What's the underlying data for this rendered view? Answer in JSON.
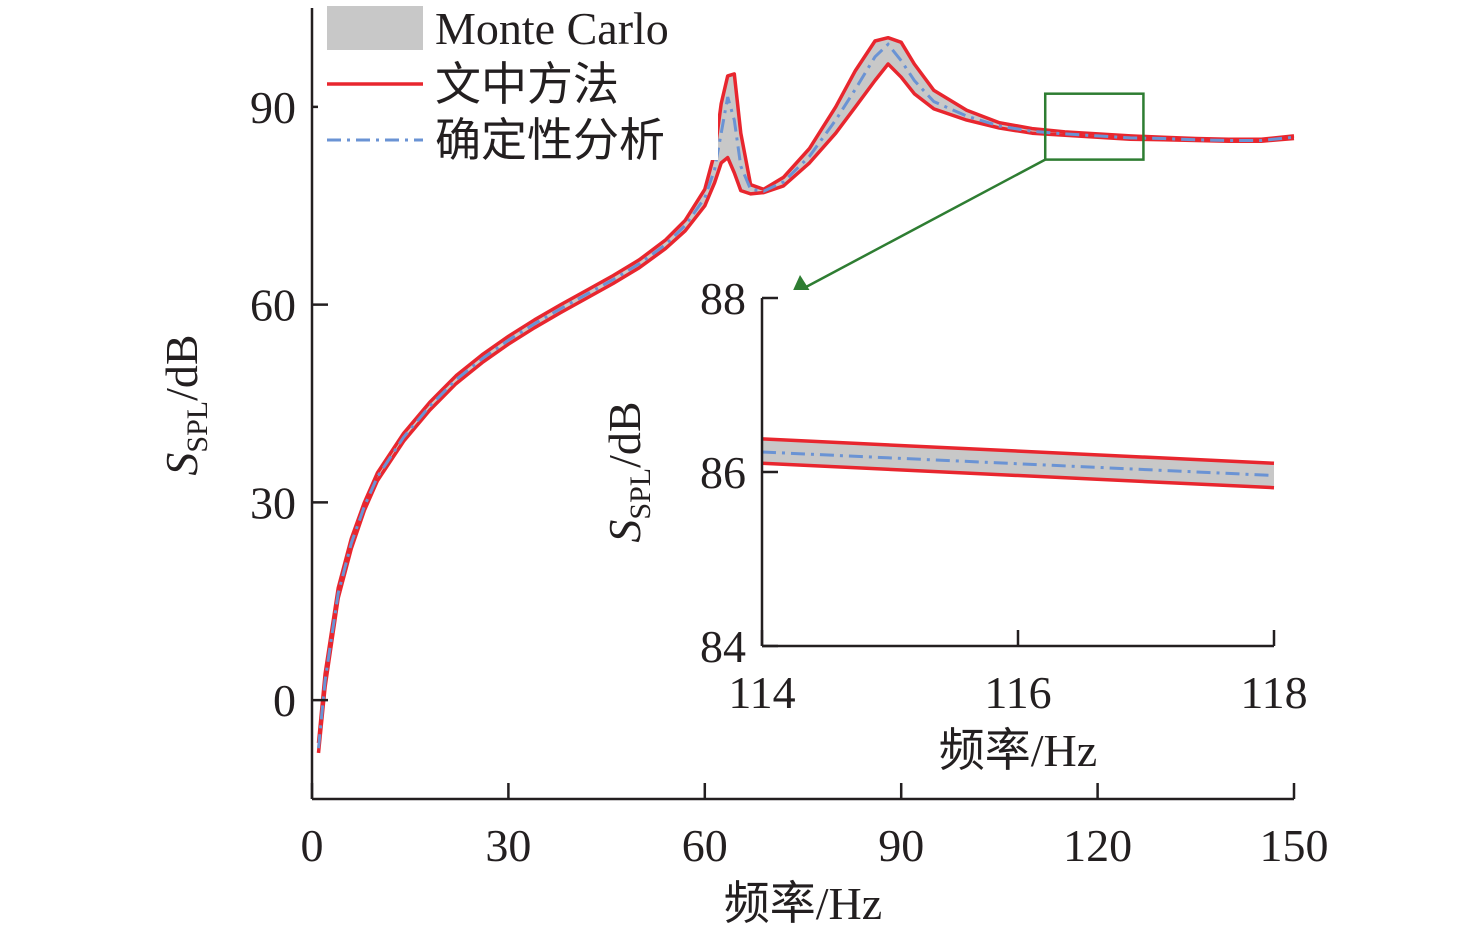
{
  "colors": {
    "band_fill": "#c8c8c8",
    "bound_line": "#e8262e",
    "deterministic_line": "#6a93d4",
    "axis": "#231f20",
    "zoom_box": "#2e7d32"
  },
  "legend": {
    "items": [
      {
        "key": "mc",
        "label": "Monte Carlo"
      },
      {
        "key": "bound",
        "label": "文中方法"
      },
      {
        "key": "det",
        "label": "确定性分析"
      }
    ]
  },
  "chart_data": [
    {
      "type": "area",
      "xlabel": "频率/Hz",
      "ylabel": "S_SPL/dB",
      "ylabel_main": "S",
      "ylabel_sub": "SPL",
      "ylabel_unit": "/dB",
      "xlim": [
        0,
        150
      ],
      "ylim": [
        -15,
        105
      ],
      "xticks": [
        0,
        30,
        60,
        90,
        120,
        150
      ],
      "yticks": [
        0,
        30,
        60,
        90
      ],
      "grid": false,
      "legend_position": "top-left",
      "zoom_box": {
        "x": [
          112,
          127
        ],
        "y": [
          82,
          92
        ]
      },
      "x": [
        1,
        2,
        4,
        6,
        8,
        10,
        14,
        18,
        22,
        26,
        30,
        34,
        38,
        42,
        46,
        50,
        54,
        57,
        60,
        61.5,
        62.5,
        63.5,
        64.5,
        65.5,
        67,
        69,
        72,
        76,
        80,
        83,
        86,
        88,
        90,
        92,
        95,
        100,
        105,
        110,
        115,
        120,
        125,
        130,
        135,
        140,
        145,
        150
      ],
      "series": [
        {
          "key": "upper",
          "values": [
            -6.5,
            4,
            17,
            24.5,
            30,
            34.5,
            40.5,
            45.2,
            49.2,
            52.4,
            55.2,
            57.7,
            60,
            62.2,
            64.4,
            66.8,
            69.8,
            72.8,
            77.5,
            83,
            90.5,
            94.7,
            95,
            86,
            78.2,
            77.5,
            79.3,
            83.7,
            90,
            95.5,
            100,
            100.5,
            99.8,
            96.5,
            92.5,
            89.5,
            87.6,
            86.7,
            86.2,
            85.9,
            85.6,
            85.4,
            85.2,
            85.1,
            85.1,
            85.6
          ]
        },
        {
          "key": "lower",
          "values": [
            -8,
            2,
            15.5,
            23,
            28.8,
            33.3,
            39.3,
            44,
            48,
            51.2,
            54,
            56.5,
            58.8,
            61,
            63.2,
            65.6,
            68.5,
            71.2,
            75,
            78.5,
            81.5,
            82.3,
            80,
            77.3,
            76.8,
            77,
            78,
            81.5,
            86,
            90,
            94,
            96.5,
            94.5,
            92,
            89.7,
            88,
            86.8,
            86,
            85.7,
            85.4,
            85.1,
            85,
            84.9,
            84.8,
            84.8,
            85.2
          ]
        },
        {
          "key": "deterministic",
          "values": [
            -7.3,
            3,
            16.2,
            23.8,
            29.4,
            33.9,
            39.9,
            44.6,
            48.6,
            51.8,
            54.6,
            57.1,
            59.4,
            61.6,
            63.8,
            66.2,
            69.1,
            72,
            76.2,
            80.5,
            86,
            91.5,
            88,
            81,
            77.5,
            77.2,
            78.6,
            82.5,
            88,
            92.7,
            97.6,
            99.5,
            97,
            94,
            90.8,
            88.6,
            87.1,
            86.3,
            85.9,
            85.6,
            85.3,
            85.2,
            85,
            84.9,
            84.9,
            85.4
          ]
        }
      ]
    },
    {
      "type": "area",
      "xlabel": "频率/Hz",
      "ylabel": "S_SPL/dB",
      "ylabel_main": "S",
      "ylabel_sub": "SPL",
      "ylabel_unit": "/dB",
      "xlim": [
        114,
        118
      ],
      "ylim": [
        84,
        88
      ],
      "xticks": [
        114,
        116,
        118
      ],
      "yticks": [
        84,
        86,
        88
      ],
      "grid": false,
      "x": [
        114,
        118
      ],
      "series": [
        {
          "key": "upper",
          "values": [
            86.38,
            86.1
          ]
        },
        {
          "key": "lower",
          "values": [
            86.1,
            85.82
          ]
        },
        {
          "key": "deterministic",
          "values": [
            86.23,
            85.96
          ]
        }
      ]
    }
  ]
}
